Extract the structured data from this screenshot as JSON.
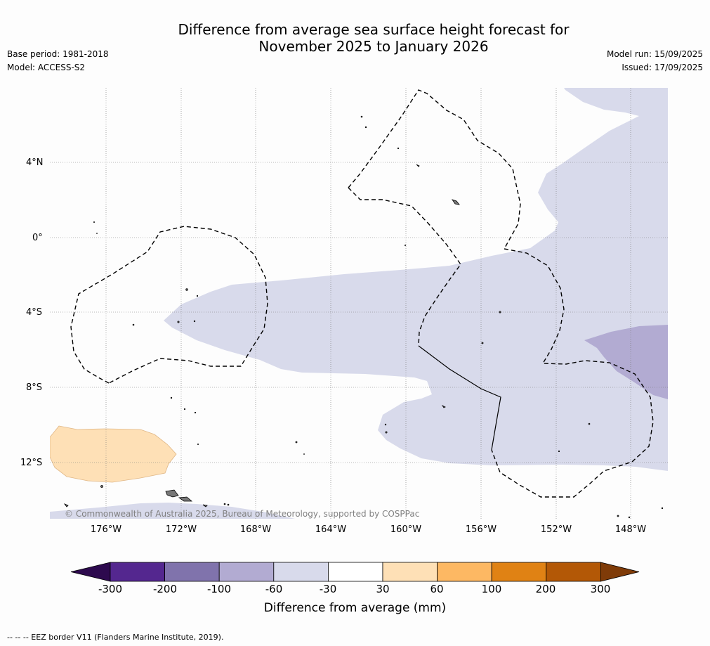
{
  "title": {
    "line1": "Difference from average sea surface height forecast for",
    "line2": "November 2025 to January 2026"
  },
  "meta": {
    "base_period": "Base period: 1981-2018",
    "model": "Model: ACCESS-S2",
    "model_run": "Model run: 15/09/2025",
    "issued": "Issued: 17/09/2025"
  },
  "map": {
    "latitude_labels": [
      "4°N",
      "0°",
      "4°S",
      "8°S",
      "12°S"
    ],
    "longitude_labels": [
      "176°W",
      "172°W",
      "168°W",
      "164°W",
      "160°W",
      "156°W",
      "152°W",
      "148°W"
    ],
    "copyright": "© Commonwealth of Australia 2025, Bureau of Meteorology, supported by COSPPac"
  },
  "colorbar": {
    "title": "Difference from average (mm)",
    "ticks": [
      "-300",
      "-200",
      "-100",
      "-60",
      "-30",
      "30",
      "60",
      "100",
      "200",
      "300"
    ],
    "colors": [
      "#2d0a4e",
      "#54278f",
      "#8073ac",
      "#b2abd2",
      "#d8daeb",
      "#ffffff",
      "#fee0b6",
      "#fdb863",
      "#e08214",
      "#b35806",
      "#7f3b08"
    ]
  },
  "footnote": "--  --  -- EEZ border V11 (Flanders Marine Institute, 2019)."
}
